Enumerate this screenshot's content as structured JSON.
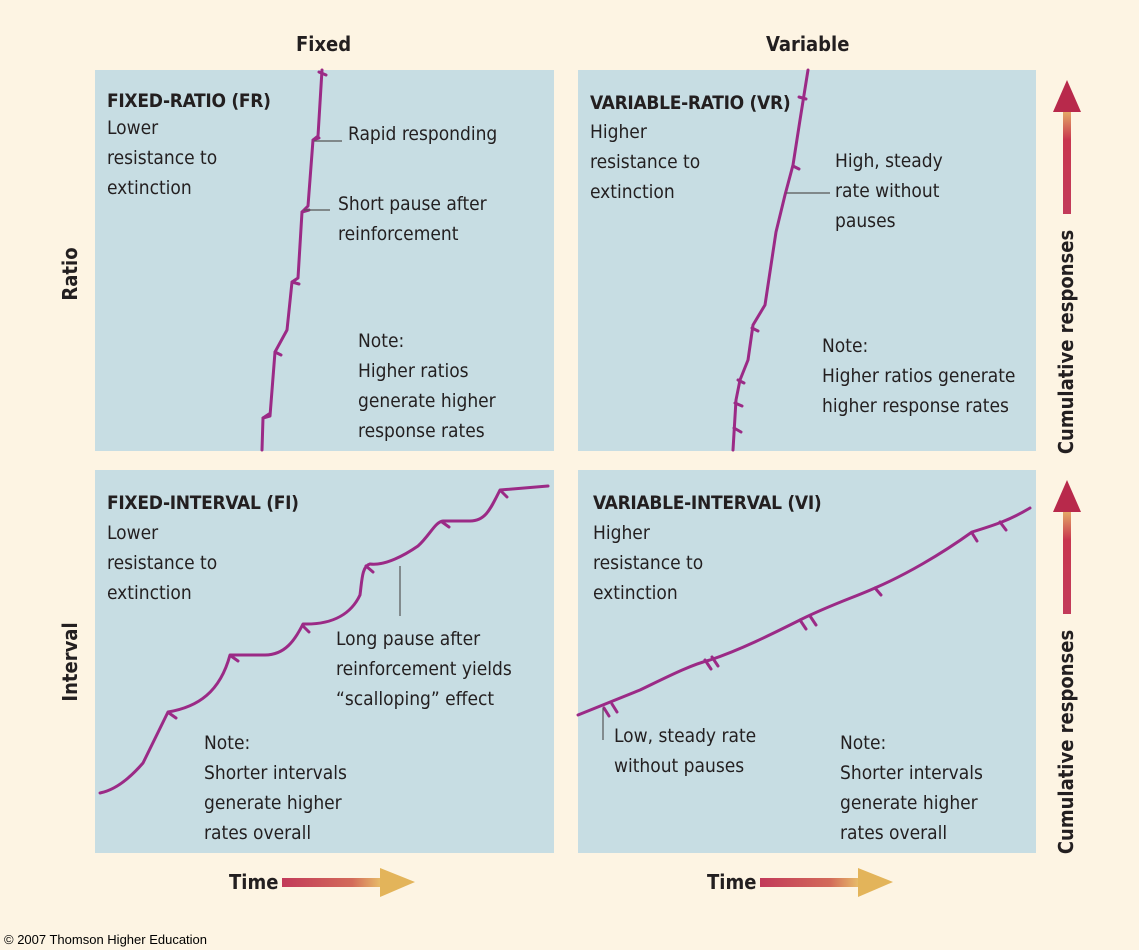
{
  "columns": {
    "fixed": "Fixed",
    "variable": "Variable"
  },
  "rows": {
    "ratio": "Ratio",
    "interval": "Interval"
  },
  "axis": {
    "y_label": "Cumulative responses",
    "x_label": "Time"
  },
  "panels": {
    "fr": {
      "title": "FIXED-RATIO (FR)",
      "resistance": [
        "Lower",
        "resistance to",
        "extinction"
      ],
      "annotations": [
        "Rapid responding",
        "Short pause after",
        "reinforcement"
      ],
      "note": [
        "Note:",
        "Higher ratios",
        "generate higher",
        "response rates"
      ]
    },
    "vr": {
      "title": "VARIABLE-RATIO (VR)",
      "resistance": [
        "Higher",
        "resistance to",
        "extinction"
      ],
      "annotations": [
        "High, steady",
        "rate without",
        "pauses"
      ],
      "note": [
        "Note:",
        "Higher ratios generate",
        "higher response rates"
      ]
    },
    "fi": {
      "title": "FIXED-INTERVAL (FI)",
      "resistance": [
        "Lower",
        "resistance to",
        "extinction"
      ],
      "annotations": [
        "Long pause after",
        "reinforcement yields",
        "“scalloping” effect"
      ],
      "note": [
        "Note:",
        "Shorter intervals",
        "generate higher",
        "rates overall"
      ]
    },
    "vi": {
      "title": "VARIABLE-INTERVAL (VI)",
      "resistance": [
        "Higher",
        "resistance to",
        "extinction"
      ],
      "annotations": [
        "Low, steady rate",
        "without pauses"
      ],
      "note": [
        "Note:",
        "Shorter intervals",
        "generate higher",
        "rates overall"
      ]
    }
  },
  "colors": {
    "curve": "#9b2a86",
    "panel": "#c7dde3",
    "background": "#fdf4e3",
    "arrow": "#a01e3c"
  },
  "copyright": "© 2007 Thomson Higher Education"
}
